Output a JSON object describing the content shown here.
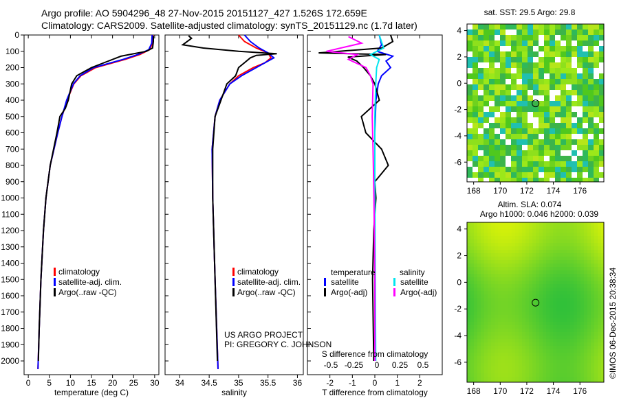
{
  "header": {
    "line1": "Argo profile: AO 5904296_48 27-Nov-2015 20151127_427 1.526S 172.659E",
    "line2": "Climatology: CARS2009. Satellite-adjusted climatology: synTS_20151129.nc (1.7d later)"
  },
  "credit": {
    "line1": "US ARGO PROJECT",
    "line2": "PI: GREGORY C. JOHNSON"
  },
  "timestamp": "©IMOS 06-Dec-2015 20:38:34",
  "colors": {
    "climatology": "#ff0000",
    "satellite": "#0000ff",
    "argo": "#000000",
    "sal_satellite": "#00e5ee",
    "sal_argo": "#ff00ff"
  },
  "chart_data": [
    {
      "type": "line",
      "xlabel": "temperature (deg C)",
      "ylabel": "",
      "xlim": [
        -1,
        31
      ],
      "ylim": [
        2050,
        0
      ],
      "xticks": [
        0,
        5,
        10,
        15,
        20,
        25,
        30
      ],
      "yticks": [
        0,
        100,
        200,
        300,
        400,
        500,
        600,
        700,
        800,
        900,
        1000,
        1100,
        1200,
        1300,
        1400,
        1500,
        1600,
        1700,
        1800,
        1900,
        2000
      ],
      "legend": [
        "climatology",
        "satellite-adj. clim.",
        "Argo(..raw -QC)"
      ],
      "series": [
        {
          "name": "climatology",
          "depth": [
            0,
            50,
            90,
            120,
            150,
            200,
            250,
            300,
            400,
            500,
            600,
            800,
            1000,
            1200,
            1500,
            1800,
            2050
          ],
          "values": [
            29.6,
            29.5,
            28.8,
            26.5,
            23,
            16,
            12.5,
            10.8,
            9.2,
            8,
            7,
            5.2,
            4.2,
            3.6,
            3,
            2.6,
            2.3
          ]
        },
        {
          "name": "satellite-adj. clim.",
          "depth": [
            0,
            50,
            90,
            120,
            150,
            200,
            250,
            300,
            400,
            500,
            600,
            800,
            1000,
            1200,
            1500,
            1800,
            2050
          ],
          "values": [
            29.4,
            29.3,
            28.6,
            26,
            22.5,
            15.5,
            12.3,
            10.7,
            9.1,
            8,
            7,
            5.2,
            4.2,
            3.6,
            3,
            2.6,
            2.3
          ]
        },
        {
          "name": "Argo(..raw -QC)",
          "depth": [
            5,
            40,
            80,
            100,
            130,
            160,
            200,
            250,
            300,
            400,
            450,
            500,
            600,
            800,
            1000,
            1200,
            1500,
            1800,
            2000
          ],
          "values": [
            29.7,
            29.7,
            29.5,
            28,
            22,
            19,
            15,
            11.5,
            10.3,
            9.5,
            8.8,
            7.5,
            6.8,
            5.2,
            4.2,
            3.6,
            3,
            2.6,
            2.4
          ]
        }
      ]
    },
    {
      "type": "line",
      "xlabel": "salinity",
      "xlim": [
        33.75,
        36.1
      ],
      "ylim": [
        2050,
        0
      ],
      "xticks": [
        34,
        34.5,
        35,
        35.5,
        36
      ],
      "legend": [
        "climatology",
        "satellite-adj. clim.",
        "Argo(..raw -QC)"
      ],
      "series": [
        {
          "name": "climatology",
          "depth": [
            0,
            40,
            80,
            110,
            140,
            170,
            200,
            250,
            300,
            400,
            500,
            700,
            1000,
            1500,
            2050
          ],
          "values": [
            35.0,
            35.1,
            35.3,
            35.5,
            35.55,
            35.45,
            35.25,
            35.0,
            34.85,
            34.68,
            34.6,
            34.55,
            34.56,
            34.6,
            34.65
          ]
        },
        {
          "name": "satellite-adj. clim.",
          "depth": [
            0,
            40,
            80,
            110,
            140,
            170,
            200,
            250,
            300,
            400,
            500,
            700,
            1000,
            1500,
            2050
          ],
          "values": [
            35.1,
            35.2,
            35.35,
            35.5,
            35.6,
            35.45,
            35.3,
            35.05,
            34.85,
            34.68,
            34.6,
            34.55,
            34.56,
            34.6,
            34.65
          ]
        },
        {
          "name": "Argo(..raw -QC)",
          "depth": [
            5,
            20,
            60,
            80,
            100,
            115,
            125,
            140,
            170,
            200,
            250,
            300,
            400,
            500,
            700,
            1000,
            1500,
            2000
          ],
          "values": [
            34.15,
            34.2,
            34.05,
            34.4,
            35.0,
            35.65,
            35.3,
            35.2,
            35.1,
            35.0,
            34.95,
            34.8,
            34.7,
            34.6,
            34.56,
            34.56,
            34.6,
            34.64
          ]
        }
      ]
    },
    {
      "type": "line",
      "xlabel": "T difference from climatology",
      "xlabel2": "S difference from climatology",
      "xlim": [
        -3,
        3
      ],
      "ylim": [
        2050,
        0
      ],
      "xticks": [
        -2,
        -1,
        0,
        1,
        2
      ],
      "xticks2": [
        -0.5,
        -0.25,
        0,
        0.25,
        0.5
      ],
      "legend_headers": [
        "temperature",
        "salinity"
      ],
      "legend": [
        "satellite",
        "Argo(-adj)",
        "satellite",
        "Argo(-adj)"
      ],
      "series": [
        {
          "name": "T satellite",
          "depth": [
            0,
            60,
            100,
            130,
            160,
            200,
            250,
            300,
            400,
            600,
            1000,
            1500,
            2000
          ],
          "values": [
            0.2,
            0.3,
            0.1,
            0.8,
            0.5,
            0.7,
            0.3,
            0.15,
            0.05,
            0,
            0,
            0,
            0
          ]
        },
        {
          "name": "T Argo(-adj)",
          "depth": [
            0,
            40,
            80,
            110,
            120,
            135,
            160,
            200,
            250,
            300,
            400,
            500,
            600,
            700,
            800,
            900,
            1000,
            1200,
            1500,
            2000
          ],
          "values": [
            0.7,
            0.8,
            0.3,
            -2.5,
            0.5,
            -1.2,
            -0.8,
            -0.5,
            -0.2,
            0,
            0.2,
            -0.6,
            -0.4,
            0.3,
            0.6,
            0,
            0.05,
            -0.05,
            -0.1,
            -0.05
          ]
        },
        {
          "name": "S satellite",
          "depth": [
            0,
            80,
            120,
            150,
            200,
            300,
            500,
            1000,
            2000
          ],
          "values": [
            0.05,
            0.1,
            -0.05,
            0.05,
            0.02,
            0.01,
            0,
            0,
            0.01
          ]
        },
        {
          "name": "S Argo(-adj)",
          "depth": [
            10,
            50,
            100,
            120,
            150,
            200,
            250,
            300,
            500,
            700,
            1000,
            1500,
            2000
          ],
          "values": [
            -0.3,
            -0.15,
            -0.55,
            -0.2,
            -0.3,
            -0.1,
            -0.05,
            -0.02,
            -0.03,
            -0.02,
            -0.01,
            0,
            0
          ]
        }
      ]
    },
    {
      "type": "heatmap",
      "title": "sat. SST: 29.5 Argo: 29.8",
      "xlim": [
        167.5,
        177.8
      ],
      "ylim": [
        -7.5,
        4.5
      ],
      "xticks": [
        168,
        170,
        172,
        174,
        176
      ],
      "yticks": [
        -6,
        -4,
        -2,
        0,
        2,
        4
      ],
      "marker": [
        172.66,
        -1.53
      ]
    },
    {
      "type": "heatmap",
      "title": "Altim. SLA: 0.074",
      "subtitle": "Argo h1000: 0.046 h2000: 0.039",
      "xlim": [
        167.5,
        177.8
      ],
      "ylim": [
        -7.5,
        4.5
      ],
      "xticks": [
        168,
        170,
        172,
        174,
        176
      ],
      "yticks": [
        -6,
        -4,
        -2,
        0,
        2,
        4
      ],
      "marker": [
        172.66,
        -1.53
      ]
    }
  ]
}
